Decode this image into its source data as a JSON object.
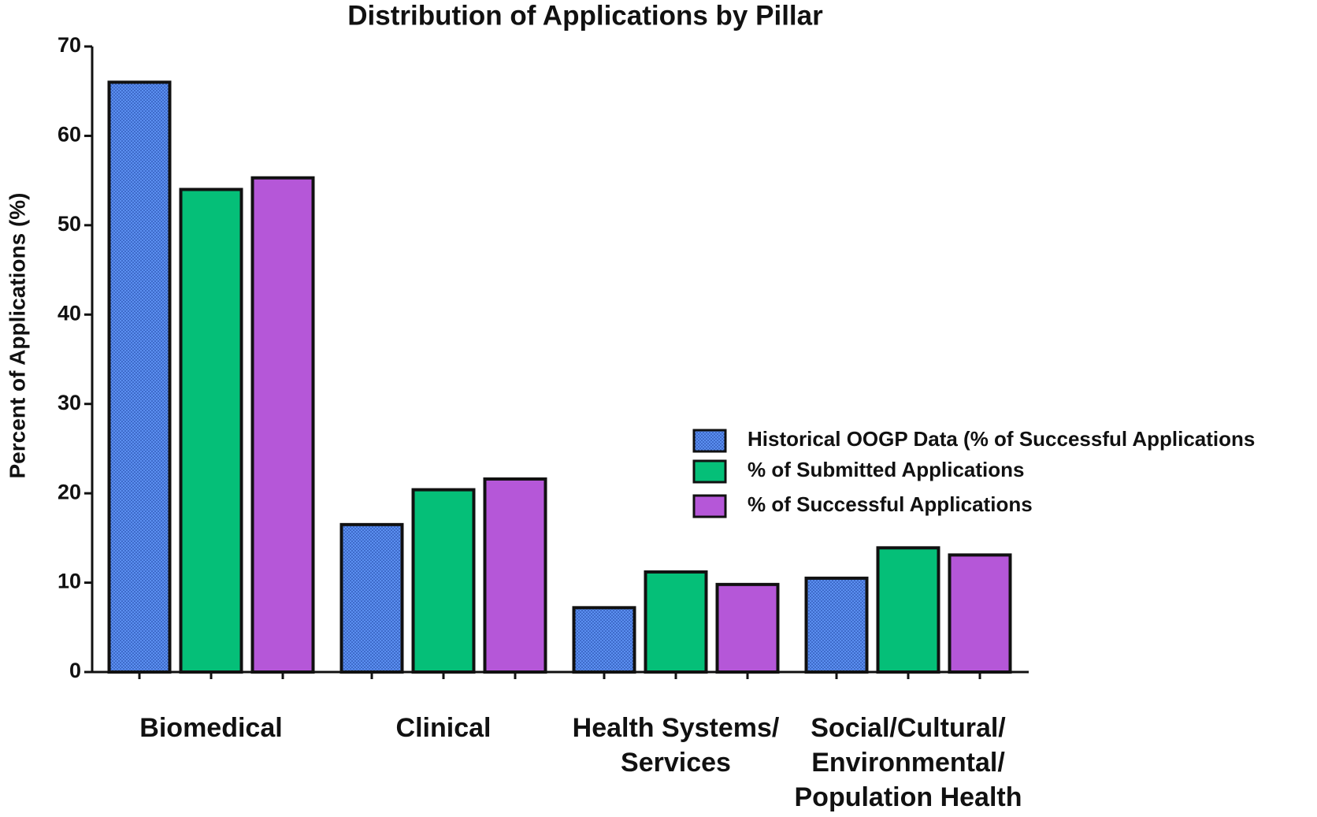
{
  "chart_data": {
    "type": "bar",
    "title": "Distribution of Applications by Pillar",
    "y_label": "Percent of Applications (%)",
    "categories": [
      "Biomedical",
      "Clinical",
      "Health Systems/\nServices",
      "Social/Cultural/\nEnvironmental/\nPopulation Health"
    ],
    "series": [
      {
        "name": "Historical OOGP Data (% of Successful Applications",
        "color": "#5b8ff0",
        "pattern": "dots",
        "values": [
          66.0,
          16.5,
          7.2,
          10.5
        ]
      },
      {
        "name": "% of Submitted Applications",
        "color": "#05bf78",
        "values": [
          54.0,
          20.4,
          11.2,
          13.9
        ]
      },
      {
        "name": "% of Successful Applications",
        "color": "#b557d8",
        "values": [
          55.3,
          21.6,
          9.8,
          13.1
        ]
      }
    ],
    "ylim": [
      0,
      70
    ],
    "yticks": [
      0,
      10,
      20,
      30,
      40,
      50,
      60,
      70
    ],
    "legend": "right"
  }
}
